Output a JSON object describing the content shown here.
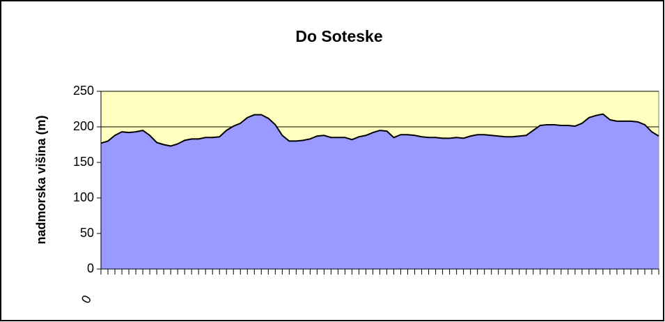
{
  "chart_data": {
    "type": "area",
    "title": "Do Soteske",
    "y_label": "nadmorska višina (m)",
    "categories": [
      "0",
      null,
      null,
      null,
      null,
      null,
      null,
      null,
      null,
      null,
      null,
      null,
      null,
      null,
      null,
      null,
      null,
      null,
      null,
      null,
      null,
      null,
      null,
      null,
      null,
      null,
      null,
      null,
      null,
      null,
      null,
      null,
      null,
      null,
      null,
      null,
      null,
      null,
      null,
      null,
      null,
      null,
      null,
      null,
      null,
      null,
      null,
      null,
      null,
      null,
      null,
      null,
      null,
      null,
      null,
      null,
      null,
      null,
      null,
      null,
      null,
      null,
      null,
      null,
      null,
      null,
      null,
      null,
      null,
      null,
      null,
      null,
      null,
      null,
      null,
      null,
      null,
      null,
      null,
      null,
      null
    ],
    "values": [
      177,
      180,
      188,
      193,
      192,
      193,
      195,
      188,
      178,
      175,
      173,
      176,
      181,
      183,
      183,
      185,
      185,
      186,
      195,
      201,
      205,
      213,
      217,
      217,
      212,
      203,
      188,
      180,
      180,
      181,
      183,
      187,
      188,
      185,
      185,
      185,
      182,
      186,
      188,
      192,
      195,
      194,
      185,
      189,
      189,
      188,
      186,
      185,
      185,
      184,
      184,
      185,
      184,
      187,
      189,
      189,
      188,
      187,
      186,
      186,
      187,
      188,
      195,
      202,
      203,
      203,
      202,
      202,
      201,
      205,
      213,
      216,
      218,
      210,
      208,
      208,
      208,
      207,
      203,
      193,
      187
    ],
    "color": "#9999ff",
    "line_color": "#000000",
    "plot_background": "#ffffc0",
    "ylim": [
      0,
      250
    ],
    "yticks": [
      0,
      50,
      100,
      150,
      200,
      250
    ],
    "grid": true
  }
}
